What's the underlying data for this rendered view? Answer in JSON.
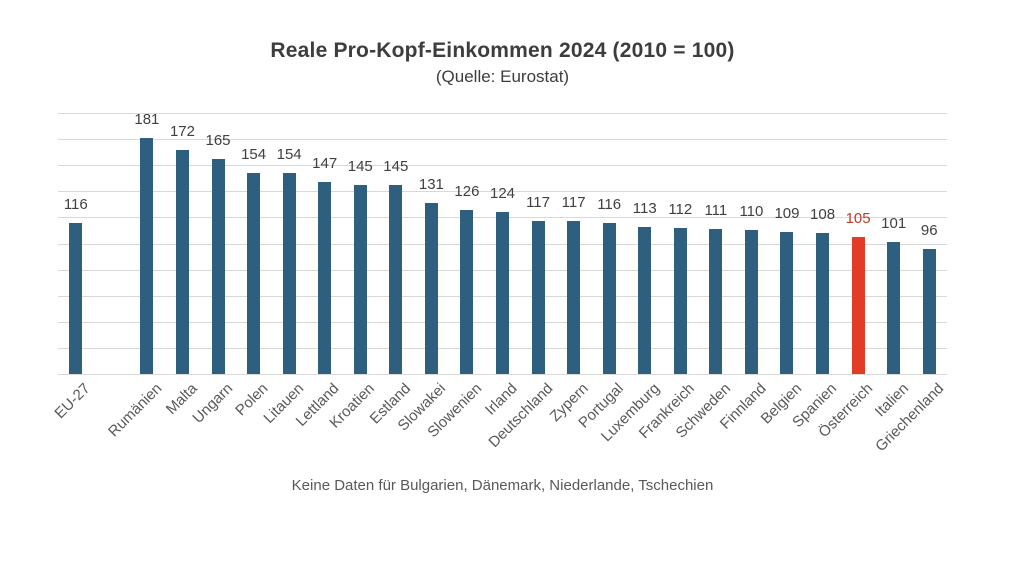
{
  "chart_data": {
    "type": "bar",
    "title": "Reale Pro-Kopf-Einkommen 2024 (2010 = 100)",
    "subtitle": "(Quelle: Eurostat)",
    "footnote": "Keine Daten für Bulgarien, Dänemark, Niederlande, Tschechien",
    "categories": [
      "EU-27",
      "Rumänien",
      "Malta",
      "Ungarn",
      "Polen",
      "Litauen",
      "Lettland",
      "Kroatien",
      "Estland",
      "Slowakei",
      "Slowenien",
      "Irland",
      "Deutschland",
      "Zypern",
      "Portugal",
      "Luxemburg",
      "Frankreich",
      "Schweden",
      "Finnland",
      "Belgien",
      "Spanien",
      "Österreich",
      "Italien",
      "Griechenland"
    ],
    "values": [
      116,
      181,
      172,
      165,
      154,
      154,
      147,
      145,
      145,
      131,
      126,
      124,
      117,
      117,
      116,
      113,
      112,
      111,
      110,
      109,
      108,
      105,
      101,
      96
    ],
    "highlight_index": 21,
    "highlight_category": "Österreich",
    "gap_after_index": 0,
    "xlabel": "",
    "ylabel": "",
    "ylim": [
      0,
      200
    ],
    "grid_step": 20,
    "grid": true,
    "legend_position": "none",
    "y_tick_labels_shown": false,
    "colors": {
      "bar": "#2F5F7E",
      "highlight_bar": "#E23C26",
      "highlight_value_label": "#C0392B",
      "value_label": "#404040",
      "category_label": "#595959",
      "gridline": "#D9D9D9",
      "title": "#3D3D3D",
      "background": "#FFFFFF"
    }
  }
}
